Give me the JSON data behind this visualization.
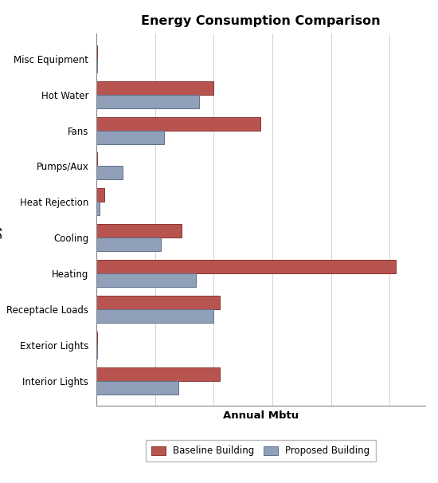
{
  "title": "Energy Consumption Comparison",
  "xlabel": "Annual Mbtu",
  "categories": [
    "Interior Lights",
    "Exterior Lights",
    "Receptacle Loads",
    "Heating",
    "Cooling",
    "Heat Rejection",
    "Pumps/Aux",
    "Fans",
    "Hot Water",
    "Misc Equipment"
  ],
  "baseline": [
    210,
    1,
    210,
    510,
    145,
    14,
    2,
    280,
    200,
    2
  ],
  "proposed": [
    140,
    1,
    200,
    170,
    110,
    6,
    45,
    115,
    175,
    2
  ],
  "baseline_color": "#b85450",
  "proposed_color": "#8fa0b8",
  "background_color": "#ffffff",
  "bar_height": 0.38,
  "xlim": [
    0,
    560
  ],
  "show_xtick_labels": false,
  "legend_labels": [
    "Baseline Building",
    "Proposed Building"
  ]
}
